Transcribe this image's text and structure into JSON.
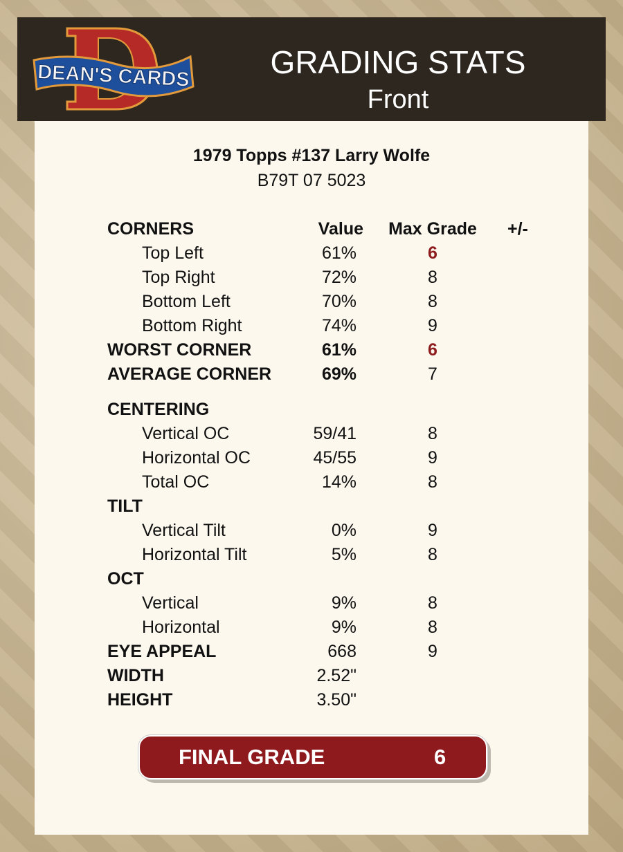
{
  "logo": {
    "text": "DEAN'S CARDS",
    "letter": "D"
  },
  "header": {
    "title": "GRADING STATS",
    "subtitle": "Front"
  },
  "card": {
    "name": "1979 Topps #137 Larry Wolfe",
    "cert": "B79T 07 5023"
  },
  "columns": {
    "label": "CORNERS",
    "value": "Value",
    "max_grade": "Max Grade",
    "plus_minus": "+/-"
  },
  "rows": [
    {
      "label": "Top Left",
      "value": "61%",
      "grade": "6",
      "indent": true,
      "bold": false,
      "red": true
    },
    {
      "label": "Top Right",
      "value": "72%",
      "grade": "8",
      "indent": true,
      "bold": false,
      "red": false
    },
    {
      "label": "Bottom Left",
      "value": "70%",
      "grade": "8",
      "indent": true,
      "bold": false,
      "red": false
    },
    {
      "label": "Bottom Right",
      "value": "74%",
      "grade": "9",
      "indent": true,
      "bold": false,
      "red": false
    },
    {
      "label": "WORST CORNER",
      "value": "61%",
      "grade": "6",
      "indent": false,
      "bold": true,
      "red": true
    },
    {
      "label": "AVERAGE CORNER",
      "value": "69%",
      "grade": "7",
      "indent": false,
      "bold": true,
      "red": false
    },
    {
      "label": "CENTERING",
      "value": "",
      "grade": "",
      "indent": false,
      "bold": true,
      "red": false
    },
    {
      "label": "Vertical OC",
      "value": "59/41",
      "grade": "8",
      "indent": true,
      "bold": false,
      "red": false
    },
    {
      "label": "Horizontal OC",
      "value": "45/55",
      "grade": "9",
      "indent": true,
      "bold": false,
      "red": false
    },
    {
      "label": "Total OC",
      "value": "14%",
      "grade": "8",
      "indent": true,
      "bold": false,
      "red": false
    },
    {
      "label": "TILT",
      "value": "",
      "grade": "",
      "indent": false,
      "bold": true,
      "red": false
    },
    {
      "label": "Vertical Tilt",
      "value": "0%",
      "grade": "9",
      "indent": true,
      "bold": false,
      "red": false
    },
    {
      "label": "Horizontal Tilt",
      "value": "5%",
      "grade": "8",
      "indent": true,
      "bold": false,
      "red": false
    },
    {
      "label": "OCT",
      "value": "",
      "grade": "",
      "indent": false,
      "bold": true,
      "red": false
    },
    {
      "label": "Vertical",
      "value": "9%",
      "grade": "8",
      "indent": true,
      "bold": false,
      "red": false
    },
    {
      "label": "Horizontal",
      "value": "9%",
      "grade": "8",
      "indent": true,
      "bold": false,
      "red": false
    },
    {
      "label": "EYE APPEAL",
      "value": "668",
      "grade": "9",
      "indent": false,
      "bold": true,
      "red": false,
      "plain_value": true
    },
    {
      "label": "WIDTH",
      "value": "2.52\"",
      "grade": "",
      "indent": false,
      "bold": true,
      "red": false,
      "plain_value": true
    },
    {
      "label": "HEIGHT",
      "value": "3.50\"",
      "grade": "",
      "indent": false,
      "bold": true,
      "red": false,
      "plain_value": true
    }
  ],
  "final": {
    "label": "FINAL GRADE",
    "value": "6"
  },
  "colors": {
    "header_bg": "#2d2720",
    "panel_bg": "#fcf8ee",
    "accent_red": "#8e1a1d"
  }
}
